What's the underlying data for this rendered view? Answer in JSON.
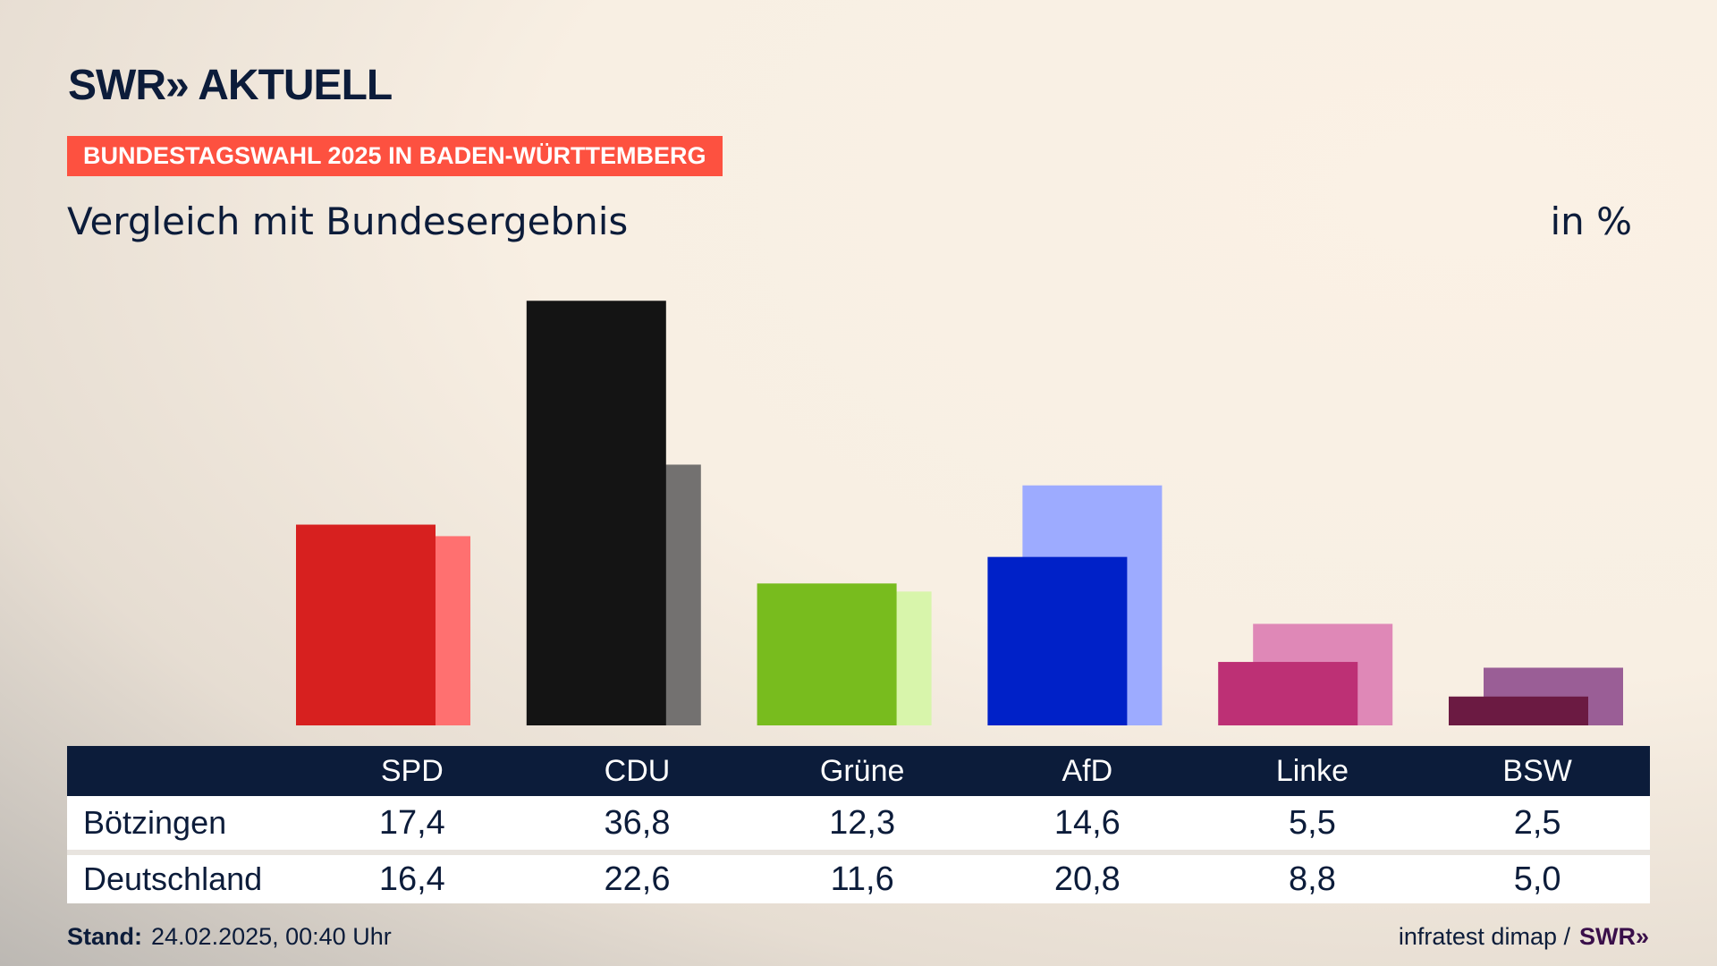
{
  "header": {
    "logo": "SWR» AKTUELL",
    "banner": "BUNDESTAGSWAHL 2025 IN BADEN-WÜRTTEMBERG",
    "subtitle": "Vergleich mit Bundesergebnis",
    "unit": "in %"
  },
  "chart_data": {
    "type": "bar",
    "title": "Vergleich mit Bundesergebnis",
    "ylabel": "in %",
    "categories": [
      "SPD",
      "CDU",
      "Grüne",
      "AfD",
      "Linke",
      "BSW"
    ],
    "series": [
      {
        "name": "Bötzingen",
        "values": [
          17.4,
          36.8,
          12.3,
          14.6,
          5.5,
          2.5
        ],
        "display": [
          "17,4",
          "36,8",
          "12,3",
          "14,6",
          "5,5",
          "2,5"
        ]
      },
      {
        "name": "Deutschland",
        "values": [
          16.4,
          22.6,
          11.6,
          20.8,
          8.8,
          5.0
        ],
        "display": [
          "16,4",
          "22,6",
          "11,6",
          "20,8",
          "8,8",
          "5,0"
        ]
      }
    ],
    "colors": {
      "front": [
        "#d7201f",
        "#141414",
        "#78bc1e",
        "#0021c8",
        "#bd3075",
        "#6b1a42"
      ],
      "back": [
        "#ff7070",
        "#737170",
        "#d8f5ab",
        "#9dabff",
        "#df88b7",
        "#9a5e96"
      ]
    }
  },
  "footer": {
    "stand_label": "Stand:",
    "stand_value": "24.02.2025, 00:40 Uhr",
    "source": "infratest dimap /",
    "source_logo": "SWR»"
  }
}
